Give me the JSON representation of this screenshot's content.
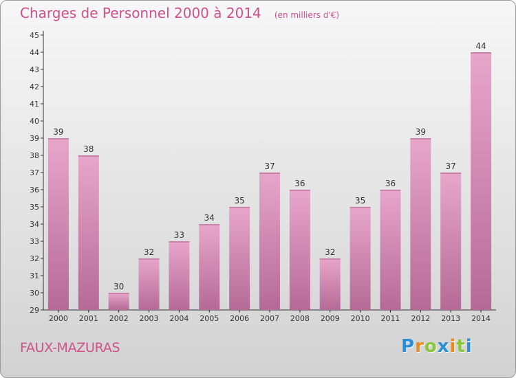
{
  "title": "Charges de Personnel 2000 à 2014",
  "subtitle": "(en milliers d'€)",
  "commune": "FAUX-MAZURAS",
  "logo": {
    "letters": [
      {
        "char": "P",
        "color": "#2a8fd6"
      },
      {
        "char": "r",
        "color": "#f08a1c"
      },
      {
        "char": "o",
        "color": "#8cc63f"
      },
      {
        "char": "x",
        "color": "#2a8fd6"
      },
      {
        "char": "i",
        "color": "#f08a1c"
      },
      {
        "char": "t",
        "color": "#8cc63f"
      },
      {
        "char": "i",
        "color": "#2a8fd6"
      }
    ]
  },
  "colors": {
    "title": "#d0508a",
    "bar_light": "#e8a6cb",
    "bar_dark": "#b56a96",
    "axis": "#333333"
  },
  "chart_data": {
    "type": "bar",
    "categories": [
      "2000",
      "2001",
      "2002",
      "2003",
      "2004",
      "2005",
      "2006",
      "2007",
      "2008",
      "2009",
      "2010",
      "2011",
      "2012",
      "2013",
      "2014"
    ],
    "values": [
      39,
      38,
      30,
      32,
      33,
      34,
      35,
      37,
      36,
      32,
      35,
      36,
      39,
      37,
      44
    ],
    "ylim": [
      29,
      45
    ],
    "yticks": [
      29,
      30,
      31,
      32,
      33,
      34,
      35,
      36,
      37,
      38,
      39,
      40,
      41,
      42,
      43,
      44,
      45
    ],
    "grid": false,
    "data_labels": true
  }
}
